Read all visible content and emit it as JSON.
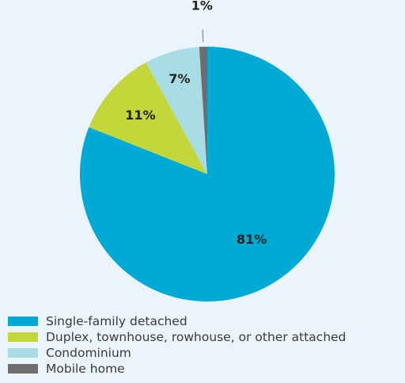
{
  "colors": {
    "background": "#eaf4fa",
    "leader_line": "#9a9a9a"
  },
  "chart_data": {
    "type": "pie",
    "title": "",
    "series": [
      {
        "categories": [
          "Single-family detached",
          "Duplex, townhouse, rowhouse, or other attached",
          "Condominium",
          "Mobile home"
        ],
        "values": [
          81,
          11,
          7,
          1
        ],
        "labels": [
          "81%",
          "11%",
          "7%",
          "1%"
        ],
        "colors": [
          "#00aad4",
          "#c3d63a",
          "#a9dde6",
          "#6d6e70"
        ]
      }
    ],
    "start_angle_deg": 0,
    "direction": "clockwise",
    "legend_position": "bottom-left",
    "grid": false
  }
}
